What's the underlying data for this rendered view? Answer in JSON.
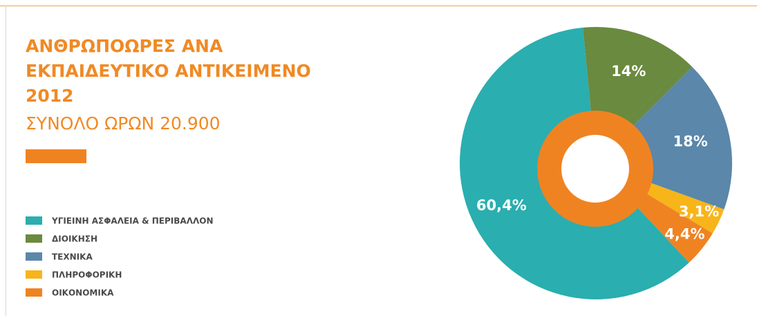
{
  "chart_data": {
    "type": "donut",
    "title": [
      "ΑΝΘΡΩΠΟΩΡΕΣ ΑΝΑ",
      "ΕΚΠΑΙΔΕΥΤΙΚΟ ΑΝΤΙΚΕΙΜΕΝΟ",
      "2012"
    ],
    "subtitle": "ΣΥΝΟΛΟ ΩΡΩΝ 20.900",
    "categories": [
      "ΥΓΙΕΙΝΗ ΑΣΦΑΛΕΙΑ & ΠΕΡΙΒΑΛΛΟΝ",
      "ΔΙΟΙΚΗΣΗ",
      "ΤΕΧΝΙΚΑ",
      "ΠΛΗΡΟΦΟΡΙΚΗ",
      "ΟΙΚΟΝΟΜΙΚΑ"
    ],
    "values": [
      60.4,
      14,
      18,
      3.1,
      4.4
    ],
    "value_labels": [
      "60,4%",
      "14%",
      "18%",
      "3,1%",
      "4,4%"
    ],
    "colors": [
      "#2aaeaf",
      "#6a8a3f",
      "#5a87aa",
      "#f8b51a",
      "#f08321"
    ],
    "legend": "left"
  }
}
